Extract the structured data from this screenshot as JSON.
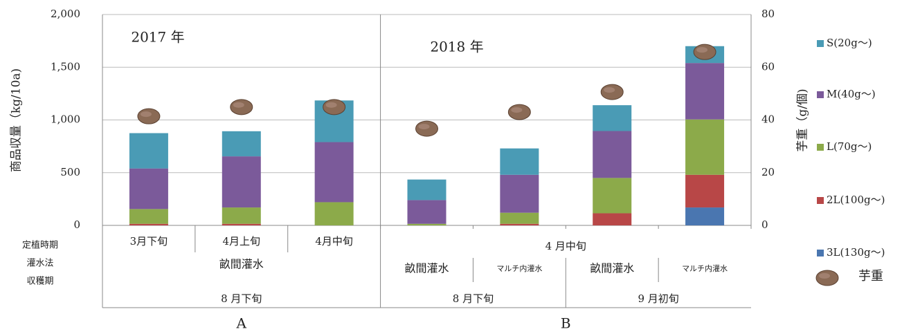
{
  "chart_data": {
    "type": "bar",
    "stacked": true,
    "y_label": "商品収量（kg/10a)",
    "y2_label": "芋重（g/個)",
    "annotations": [
      "2017 年",
      "2018 年"
    ],
    "categories": [
      null,
      null,
      null,
      null,
      null,
      null,
      null
    ],
    "row_labels": [
      "定植時期",
      "灌水法",
      "収穫期"
    ],
    "planting": [
      "3月下旬",
      "4月上旬",
      "4月中旬",
      "4 月中旬"
    ],
    "irrigation": [
      "畝間灌水",
      "畝間灌水",
      "マルチ内灌水",
      "畝間灌水",
      "マルチ内灌水"
    ],
    "harvest": [
      "8 月下旬",
      "8 月下旬",
      "9 月初旬"
    ],
    "experiment": [
      "A",
      "B"
    ],
    "ylim": [
      0,
      2000
    ],
    "yticks": [
      0,
      500,
      {
        "value": 1000,
        "label": "1,000"
      },
      {
        "value": 1500,
        "label": "1,500"
      },
      {
        "value": 2000,
        "label": "2,000"
      }
    ],
    "y2lim": [
      0,
      80
    ],
    "y2ticks": [
      0,
      20,
      40,
      60,
      80
    ],
    "grid": true,
    "series": [
      {
        "name": "3L(130g～)",
        "color": "#4a76b0",
        "values": [
          0,
          0,
          0,
          0,
          0,
          0,
          170
        ]
      },
      {
        "name": "2L(100g～)",
        "color": "#b84747",
        "values": [
          15,
          15,
          0,
          0,
          15,
          115,
          310
        ]
      },
      {
        "name": "L(70g～)",
        "color": "#8caa4a",
        "values": [
          140,
          155,
          220,
          15,
          105,
          335,
          525
        ]
      },
      {
        "name": "M(40g～)",
        "color": "#7b5a9a",
        "values": [
          385,
          485,
          570,
          225,
          360,
          445,
          535
        ]
      },
      {
        "name": "S(20g～)",
        "color": "#4a9bb5",
        "values": [
          335,
          238,
          395,
          195,
          250,
          245,
          160
        ]
      },
      {
        "name": "芋重",
        "color": "#8a6a55",
        "axis": "y2",
        "type": "marker",
        "values": [
          41.4,
          44.9,
          44.9,
          36.7,
          43,
          50.6,
          65.8
        ]
      }
    ]
  }
}
